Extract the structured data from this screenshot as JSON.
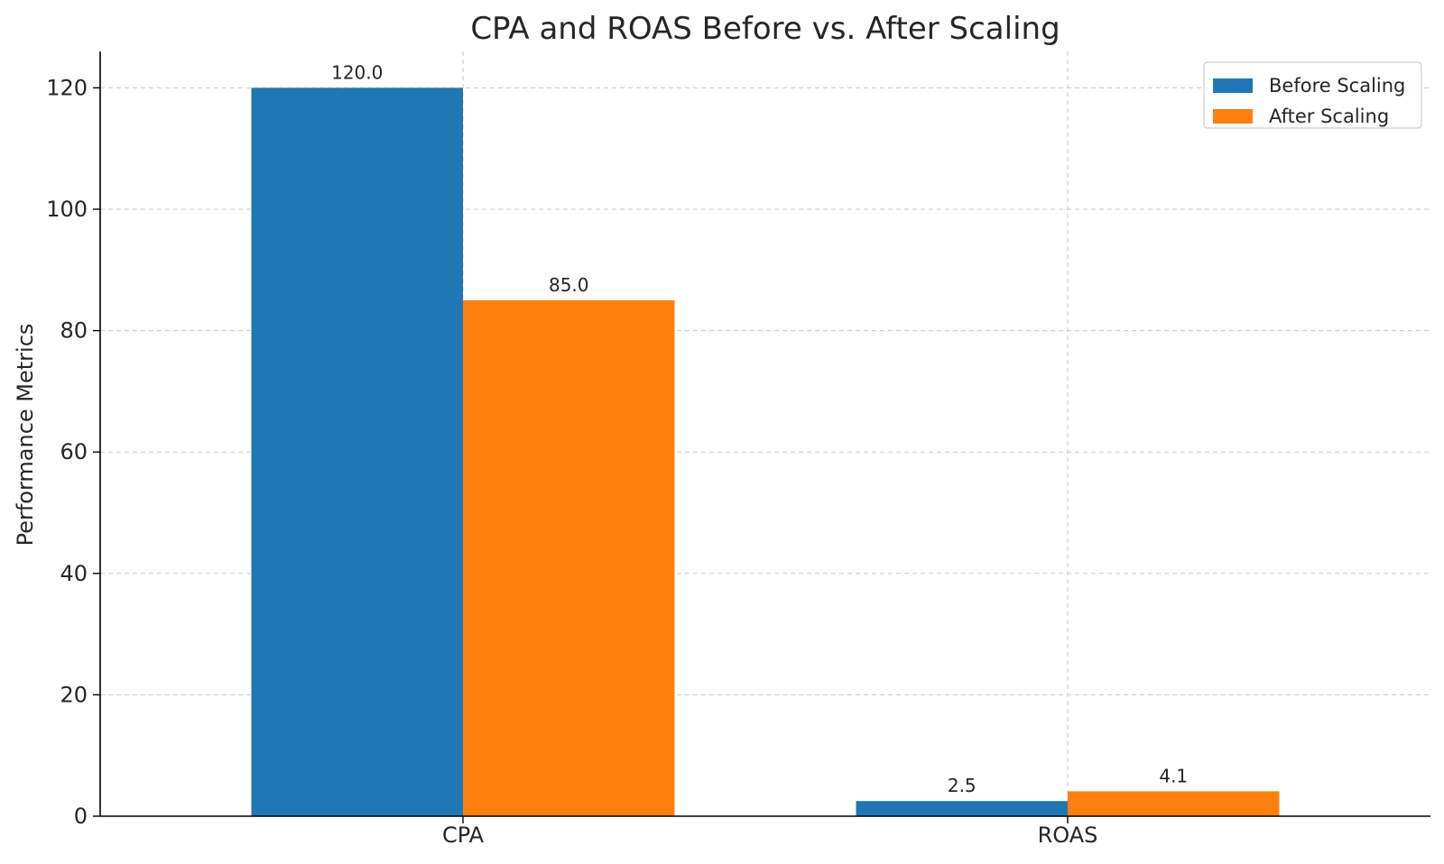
{
  "chart_data": {
    "type": "bar",
    "title": "CPA and ROAS Before vs. After Scaling",
    "xlabel": "",
    "ylabel": "Performance Metrics",
    "categories": [
      "CPA",
      "ROAS"
    ],
    "series": [
      {
        "name": "Before Scaling",
        "values": [
          120.0,
          2.5
        ],
        "labels": [
          "120.0",
          "2.5"
        ],
        "color": "#1f77b4"
      },
      {
        "name": "After Scaling",
        "values": [
          85.0,
          4.1
        ],
        "labels": [
          "85.0",
          "4.1"
        ],
        "color": "#ff7f0e"
      }
    ],
    "ylim": [
      0,
      126
    ],
    "yticks": [
      0,
      20,
      40,
      60,
      80,
      100,
      120
    ],
    "grid": true,
    "legend_position": "top-right"
  }
}
